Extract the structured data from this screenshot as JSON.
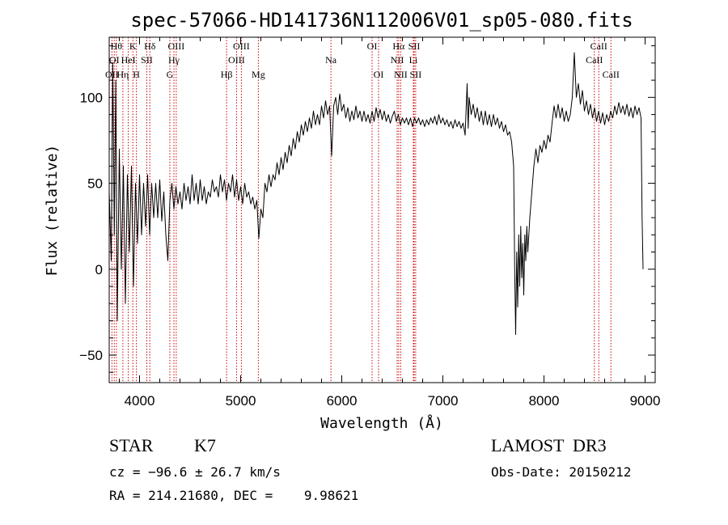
{
  "chart_data": {
    "type": "line",
    "title": "spec-57066-HD141736N112006V01_sp05-080.fits",
    "xlabel": "Wavelength (Å)",
    "ylabel": "Flux (relative)",
    "xlim": [
      3700,
      9100
    ],
    "ylim": [
      -66,
      135
    ],
    "xticks": [
      4000,
      5000,
      6000,
      7000,
      8000,
      9000
    ],
    "xtick_labels": [
      "4000",
      "5000",
      "6000",
      "7000",
      "8000",
      "9000"
    ],
    "yticks": [
      -50,
      0,
      50,
      100
    ],
    "ytick_labels": [
      "−50",
      "0",
      "50",
      "100"
    ],
    "grid": false,
    "series": [
      {
        "name": "spectrum",
        "points": [
          [
            3700,
            45
          ],
          [
            3720,
            5
          ],
          [
            3735,
            120
          ],
          [
            3750,
            20
          ],
          [
            3765,
            110
          ],
          [
            3780,
            -30
          ],
          [
            3800,
            70
          ],
          [
            3820,
            0
          ],
          [
            3840,
            60
          ],
          [
            3860,
            -20
          ],
          [
            3880,
            55
          ],
          [
            3900,
            10
          ],
          [
            3920,
            60
          ],
          [
            3940,
            -10
          ],
          [
            3960,
            50
          ],
          [
            3980,
            15
          ],
          [
            4000,
            55
          ],
          [
            4020,
            20
          ],
          [
            4040,
            50
          ],
          [
            4060,
            25
          ],
          [
            4080,
            55
          ],
          [
            4100,
            20
          ],
          [
            4120,
            50
          ],
          [
            4140,
            30
          ],
          [
            4160,
            50
          ],
          [
            4180,
            30
          ],
          [
            4200,
            52
          ],
          [
            4220,
            28
          ],
          [
            4240,
            45
          ],
          [
            4260,
            20
          ],
          [
            4280,
            5
          ],
          [
            4300,
            40
          ],
          [
            4320,
            50
          ],
          [
            4340,
            35
          ],
          [
            4360,
            48
          ],
          [
            4380,
            38
          ],
          [
            4400,
            45
          ],
          [
            4420,
            35
          ],
          [
            4440,
            50
          ],
          [
            4460,
            40
          ],
          [
            4480,
            48
          ],
          [
            4500,
            38
          ],
          [
            4520,
            55
          ],
          [
            4540,
            40
          ],
          [
            4560,
            50
          ],
          [
            4580,
            38
          ],
          [
            4600,
            52
          ],
          [
            4620,
            40
          ],
          [
            4640,
            48
          ],
          [
            4660,
            38
          ],
          [
            4680,
            45
          ],
          [
            4700,
            42
          ],
          [
            4720,
            52
          ],
          [
            4740,
            45
          ],
          [
            4760,
            48
          ],
          [
            4780,
            42
          ],
          [
            4800,
            55
          ],
          [
            4820,
            45
          ],
          [
            4840,
            52
          ],
          [
            4860,
            40
          ],
          [
            4880,
            50
          ],
          [
            4900,
            45
          ],
          [
            4920,
            55
          ],
          [
            4940,
            42
          ],
          [
            4960,
            52
          ],
          [
            4980,
            40
          ],
          [
            5000,
            48
          ],
          [
            5020,
            38
          ],
          [
            5040,
            50
          ],
          [
            5060,
            42
          ],
          [
            5080,
            45
          ],
          [
            5100,
            38
          ],
          [
            5120,
            42
          ],
          [
            5140,
            35
          ],
          [
            5160,
            40
          ],
          [
            5180,
            18
          ],
          [
            5200,
            35
          ],
          [
            5220,
            30
          ],
          [
            5240,
            50
          ],
          [
            5260,
            45
          ],
          [
            5280,
            55
          ],
          [
            5300,
            48
          ],
          [
            5320,
            55
          ],
          [
            5340,
            52
          ],
          [
            5360,
            62
          ],
          [
            5380,
            55
          ],
          [
            5400,
            65
          ],
          [
            5420,
            58
          ],
          [
            5440,
            68
          ],
          [
            5460,
            62
          ],
          [
            5480,
            72
          ],
          [
            5500,
            66
          ],
          [
            5520,
            76
          ],
          [
            5540,
            70
          ],
          [
            5560,
            80
          ],
          [
            5580,
            74
          ],
          [
            5600,
            84
          ],
          [
            5620,
            78
          ],
          [
            5640,
            86
          ],
          [
            5660,
            80
          ],
          [
            5680,
            88
          ],
          [
            5700,
            82
          ],
          [
            5720,
            92
          ],
          [
            5740,
            84
          ],
          [
            5760,
            90
          ],
          [
            5780,
            84
          ],
          [
            5800,
            95
          ],
          [
            5820,
            88
          ],
          [
            5840,
            98
          ],
          [
            5860,
            90
          ],
          [
            5880,
            95
          ],
          [
            5900,
            66
          ],
          [
            5920,
            95
          ],
          [
            5940,
            100
          ],
          [
            5960,
            90
          ],
          [
            5980,
            102
          ],
          [
            6000,
            92
          ],
          [
            6020,
            96
          ],
          [
            6040,
            88
          ],
          [
            6060,
            94
          ],
          [
            6080,
            86
          ],
          [
            6100,
            92
          ],
          [
            6120,
            87
          ],
          [
            6140,
            95
          ],
          [
            6160,
            88
          ],
          [
            6180,
            92
          ],
          [
            6200,
            86
          ],
          [
            6220,
            92
          ],
          [
            6240,
            86
          ],
          [
            6260,
            90
          ],
          [
            6280,
            85
          ],
          [
            6300,
            92
          ],
          [
            6320,
            86
          ],
          [
            6340,
            94
          ],
          [
            6360,
            88
          ],
          [
            6380,
            93
          ],
          [
            6400,
            87
          ],
          [
            6420,
            92
          ],
          [
            6440,
            86
          ],
          [
            6460,
            90
          ],
          [
            6480,
            85
          ],
          [
            6500,
            89
          ],
          [
            6520,
            92
          ],
          [
            6540,
            86
          ],
          [
            6560,
            90
          ],
          [
            6580,
            84
          ],
          [
            6600,
            88
          ],
          [
            6620,
            85
          ],
          [
            6640,
            88
          ],
          [
            6660,
            84
          ],
          [
            6680,
            88
          ],
          [
            6700,
            83
          ],
          [
            6720,
            88
          ],
          [
            6740,
            85
          ],
          [
            6760,
            88
          ],
          [
            6780,
            84
          ],
          [
            6800,
            87
          ],
          [
            6820,
            83
          ],
          [
            6840,
            87
          ],
          [
            6860,
            84
          ],
          [
            6880,
            88
          ],
          [
            6900,
            85
          ],
          [
            6920,
            89
          ],
          [
            6940,
            84
          ],
          [
            6960,
            90
          ],
          [
            6980,
            85
          ],
          [
            7000,
            88
          ],
          [
            7020,
            84
          ],
          [
            7040,
            87
          ],
          [
            7060,
            83
          ],
          [
            7080,
            86
          ],
          [
            7100,
            82
          ],
          [
            7120,
            87
          ],
          [
            7140,
            83
          ],
          [
            7160,
            86
          ],
          [
            7180,
            82
          ],
          [
            7200,
            85
          ],
          [
            7220,
            78
          ],
          [
            7240,
            108
          ],
          [
            7250,
            82
          ],
          [
            7260,
            100
          ],
          [
            7280,
            90
          ],
          [
            7300,
            96
          ],
          [
            7320,
            88
          ],
          [
            7340,
            94
          ],
          [
            7360,
            86
          ],
          [
            7380,
            92
          ],
          [
            7400,
            84
          ],
          [
            7420,
            92
          ],
          [
            7440,
            84
          ],
          [
            7460,
            90
          ],
          [
            7480,
            83
          ],
          [
            7500,
            90
          ],
          [
            7520,
            84
          ],
          [
            7540,
            88
          ],
          [
            7560,
            82
          ],
          [
            7580,
            86
          ],
          [
            7600,
            80
          ],
          [
            7620,
            84
          ],
          [
            7640,
            78
          ],
          [
            7660,
            80
          ],
          [
            7680,
            74
          ],
          [
            7700,
            60
          ],
          [
            7710,
            0
          ],
          [
            7720,
            -38
          ],
          [
            7730,
            10
          ],
          [
            7740,
            -22
          ],
          [
            7750,
            20
          ],
          [
            7760,
            -10
          ],
          [
            7770,
            25
          ],
          [
            7780,
            -5
          ],
          [
            7790,
            15
          ],
          [
            7800,
            -15
          ],
          [
            7810,
            20
          ],
          [
            7820,
            5
          ],
          [
            7830,
            25
          ],
          [
            7840,
            10
          ],
          [
            7860,
            30
          ],
          [
            7880,
            45
          ],
          [
            7900,
            60
          ],
          [
            7920,
            70
          ],
          [
            7940,
            62
          ],
          [
            7960,
            72
          ],
          [
            7980,
            68
          ],
          [
            8000,
            75
          ],
          [
            8020,
            70
          ],
          [
            8040,
            78
          ],
          [
            8060,
            74
          ],
          [
            8080,
            85
          ],
          [
            8100,
            95
          ],
          [
            8120,
            88
          ],
          [
            8140,
            96
          ],
          [
            8160,
            88
          ],
          [
            8180,
            94
          ],
          [
            8200,
            86
          ],
          [
            8220,
            92
          ],
          [
            8240,
            86
          ],
          [
            8260,
            90
          ],
          [
            8280,
            100
          ],
          [
            8300,
            126
          ],
          [
            8320,
            100
          ],
          [
            8340,
            108
          ],
          [
            8360,
            96
          ],
          [
            8380,
            104
          ],
          [
            8400,
            92
          ],
          [
            8420,
            98
          ],
          [
            8440,
            90
          ],
          [
            8460,
            96
          ],
          [
            8480,
            88
          ],
          [
            8500,
            94
          ],
          [
            8520,
            86
          ],
          [
            8540,
            92
          ],
          [
            8560,
            85
          ],
          [
            8580,
            91
          ],
          [
            8600,
            84
          ],
          [
            8620,
            90
          ],
          [
            8640,
            86
          ],
          [
            8660,
            92
          ],
          [
            8680,
            88
          ],
          [
            8700,
            95
          ],
          [
            8720,
            90
          ],
          [
            8740,
            97
          ],
          [
            8760,
            91
          ],
          [
            8780,
            95
          ],
          [
            8800,
            90
          ],
          [
            8820,
            96
          ],
          [
            8840,
            89
          ],
          [
            8860,
            94
          ],
          [
            8880,
            88
          ],
          [
            8900,
            95
          ],
          [
            8920,
            90
          ],
          [
            8940,
            94
          ],
          [
            8960,
            88
          ],
          [
            8970,
            30
          ],
          [
            8980,
            0
          ]
        ]
      }
    ],
    "spectral_lines": [
      {
        "wavelength": 3727,
        "label": "OII",
        "row": 3
      },
      {
        "wavelength": 3750,
        "label": "OI",
        "row": 2
      },
      {
        "wavelength": 3771,
        "label": "Hθ",
        "row": 1
      },
      {
        "wavelength": 3835,
        "label": "Hη",
        "row": 3
      },
      {
        "wavelength": 3889,
        "label": "HeI",
        "row": 2
      },
      {
        "wavelength": 3934,
        "label": "K",
        "row": 1
      },
      {
        "wavelength": 3969,
        "label": "H",
        "row": 3
      },
      {
        "wavelength": 4072,
        "label": "SII",
        "row": 2
      },
      {
        "wavelength": 4102,
        "label": "Hδ",
        "row": 1
      },
      {
        "wavelength": 4300,
        "label": "G",
        "row": 3
      },
      {
        "wavelength": 4340,
        "label": "Hγ",
        "row": 2
      },
      {
        "wavelength": 4363,
        "label": "OIII",
        "row": 1
      },
      {
        "wavelength": 4861,
        "label": "Hβ",
        "row": 3
      },
      {
        "wavelength": 4959,
        "label": "OIII",
        "row": 2
      },
      {
        "wavelength": 5007,
        "label": "OIII",
        "row": 1
      },
      {
        "wavelength": 5175,
        "label": "Mg",
        "row": 3
      },
      {
        "wavelength": 5893,
        "label": "Na",
        "row": 2
      },
      {
        "wavelength": 6300,
        "label": "OI",
        "row": 1
      },
      {
        "wavelength": 6364,
        "label": "OI",
        "row": 3
      },
      {
        "wavelength": 6548,
        "label": "NII",
        "row": 2
      },
      {
        "wavelength": 6563,
        "label": "Hα",
        "row": 1
      },
      {
        "wavelength": 6583,
        "label": "NII",
        "row": 3
      },
      {
        "wavelength": 6708,
        "label": "Li",
        "row": 2
      },
      {
        "wavelength": 6716,
        "label": "SII",
        "row": 1
      },
      {
        "wavelength": 6731,
        "label": "SII",
        "row": 3
      },
      {
        "wavelength": 8498,
        "label": "CaII",
        "row": 2
      },
      {
        "wavelength": 8542,
        "label": "CaII",
        "row": 1
      },
      {
        "wavelength": 8662,
        "label": "CaII",
        "row": 3
      }
    ],
    "spectral_line_color": "#cc0000"
  },
  "info": {
    "object_class": "STAR",
    "subclass": "K7",
    "survey": "LAMOST  DR3",
    "cz": "cz = −96.6 ± 26.7 km/s",
    "obs_date": "Obs-Date: 20150212",
    "coords": "RA = 214.21680, DEC =    9.98621"
  }
}
